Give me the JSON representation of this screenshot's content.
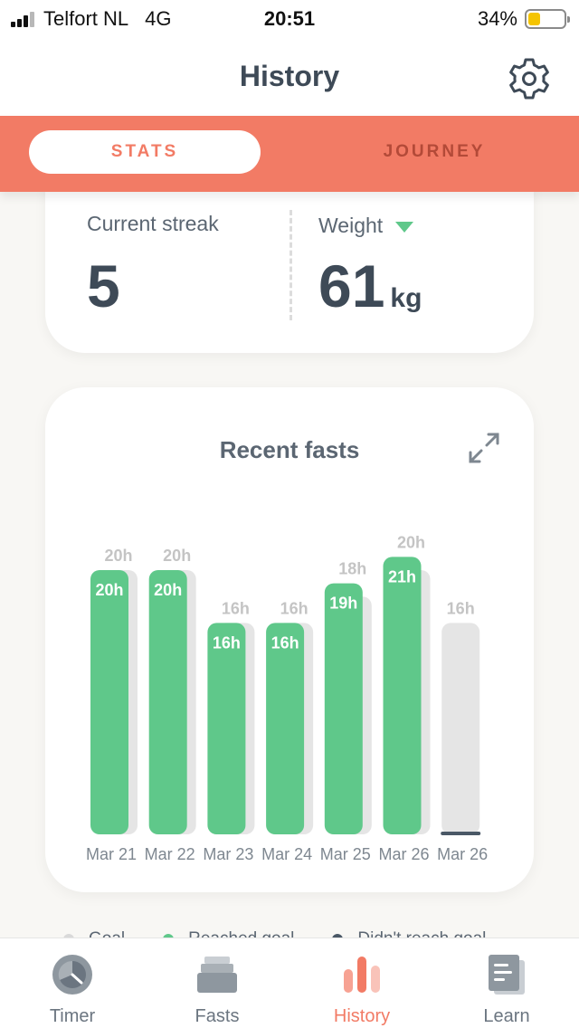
{
  "status_bar": {
    "carrier": "Telfort NL",
    "network": "4G",
    "time": "20:51",
    "battery_percent": "34%",
    "battery_level": 0.34
  },
  "header": {
    "title": "History",
    "settings_icon": "gear-icon"
  },
  "tabs": [
    {
      "label": "STATS",
      "active": true
    },
    {
      "label": "JOURNEY",
      "active": false
    }
  ],
  "stats": {
    "current_streak_label": "Current streak",
    "current_streak_value": "5",
    "weight_label": "Weight",
    "weight_trend_icon": "triangle-down-icon",
    "weight_value": "61",
    "weight_unit": "kg"
  },
  "chart_data": {
    "type": "bar",
    "title": "Recent fasts",
    "categories": [
      "Mar 21",
      "Mar 22",
      "Mar 23",
      "Mar 24",
      "Mar 25",
      "Mar 26",
      "Mar 26"
    ],
    "series": [
      {
        "name": "Goal",
        "values": [
          20,
          20,
          16,
          16,
          18,
          20,
          16
        ]
      },
      {
        "name": "Reached goal",
        "values": [
          20,
          20,
          16,
          16,
          19,
          21,
          0
        ]
      }
    ],
    "goal_labels": [
      "20h",
      "20h",
      "16h",
      "16h",
      "18h",
      "20h",
      "16h"
    ],
    "actual_labels": [
      "20h",
      "20h",
      "16h",
      "16h",
      "19h",
      "21h",
      ""
    ],
    "ylim": [
      0,
      21
    ],
    "colors": {
      "reached": "#5fc88a",
      "goal": "#e5e5e5",
      "not_reached": "#4a5866"
    }
  },
  "legend": [
    {
      "label": "Goal",
      "color": "#d9d9d9"
    },
    {
      "label": "Reached goal",
      "color": "#5fc88a"
    },
    {
      "label": "Didn't reach goal",
      "color": "#4a5866"
    }
  ],
  "bottom_nav": [
    {
      "label": "Timer",
      "icon": "timer-icon",
      "active": false
    },
    {
      "label": "Fasts",
      "icon": "fasts-icon",
      "active": false
    },
    {
      "label": "History",
      "icon": "history-icon",
      "active": true
    },
    {
      "label": "Learn",
      "icon": "learn-icon",
      "active": false
    }
  ],
  "accent_color": "#f27b65"
}
